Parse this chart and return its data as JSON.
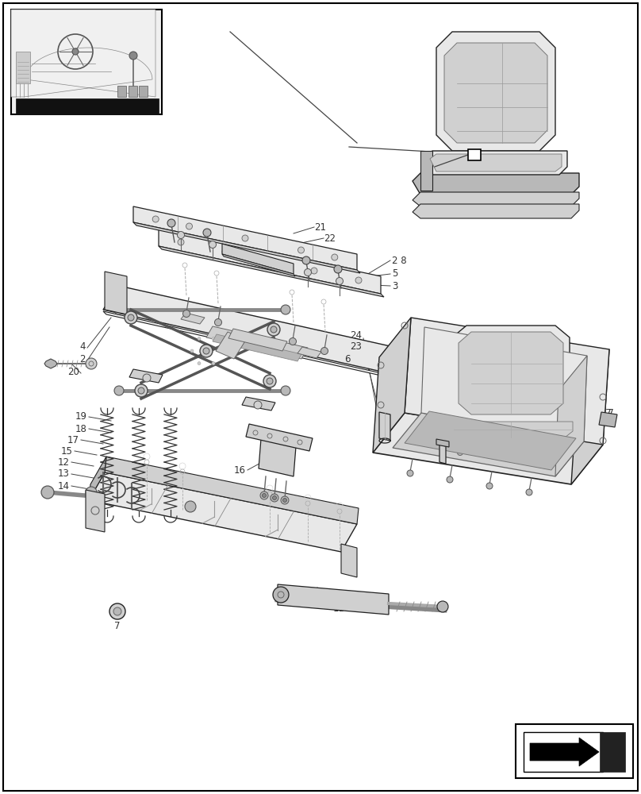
{
  "bg_color": "#ffffff",
  "fig_width": 8.08,
  "fig_height": 10.0,
  "dpi": 100,
  "lc": "#222222",
  "tc": "#333333",
  "fs": 8.5,
  "gray1": "#e8e8e8",
  "gray2": "#d0d0d0",
  "gray3": "#b8b8b8",
  "gray4": "#f0f0f0"
}
